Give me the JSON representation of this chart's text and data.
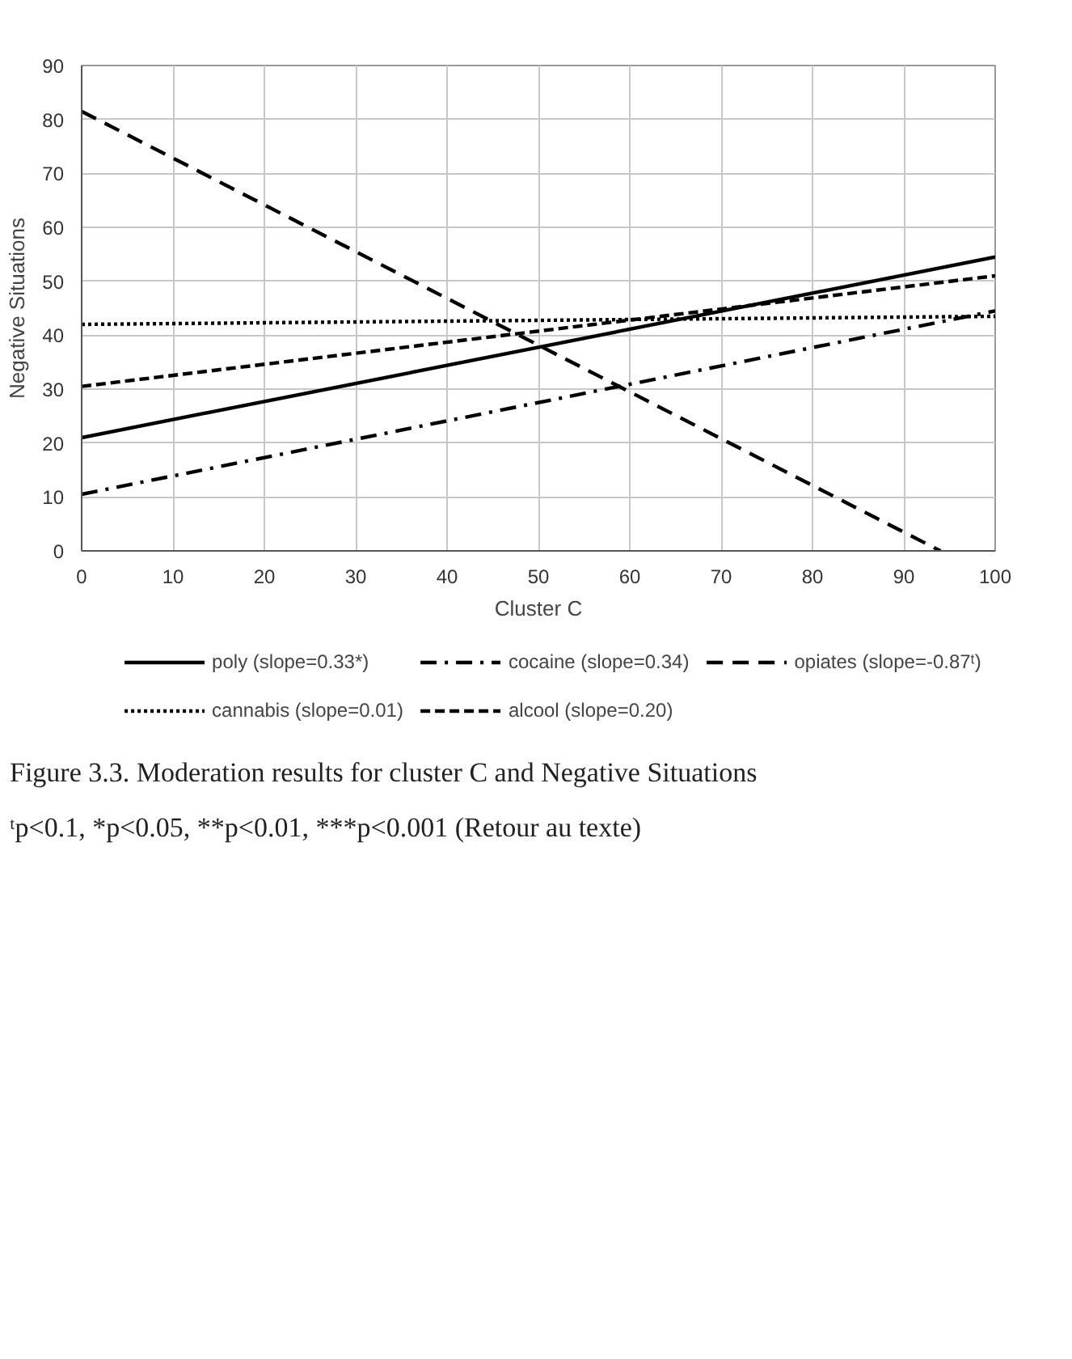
{
  "chart_data": {
    "type": "line",
    "xlabel": "Cluster C",
    "ylabel": "Negative Situations",
    "x": [
      0,
      100
    ],
    "series": [
      {
        "name": "poly (slope=0.33*)",
        "color": "#000000",
        "line_style": "solid",
        "values": [
          21,
          54.5
        ]
      },
      {
        "name": "cocaine (slope=0.34)",
        "color": "#000000",
        "line_style": "dashdot",
        "values": [
          10.5,
          44.5
        ]
      },
      {
        "name": "opiates (slope=-0.87ᵗ)",
        "color": "#000000",
        "line_style": "longdash",
        "x": [
          0,
          94
        ],
        "values": [
          81.5,
          0
        ]
      },
      {
        "name": "cannabis (slope=0.01)",
        "color": "#000000",
        "line_style": "dotted",
        "values": [
          42,
          43.5
        ]
      },
      {
        "name": "alcool (slope=0.20)",
        "color": "#000000",
        "line_style": "dashed",
        "values": [
          30.5,
          51
        ]
      }
    ],
    "xlim": [
      0,
      100
    ],
    "xticks": [
      0,
      10,
      20,
      30,
      40,
      50,
      60,
      70,
      80,
      90,
      100
    ],
    "ylim": [
      0,
      90
    ],
    "yticks": [
      0,
      10,
      20,
      30,
      40,
      50,
      60,
      70,
      80,
      90
    ],
    "grid": true,
    "legend": "bottom",
    "marker": "none",
    "annotations": [
      "Figure 3.3. Moderation results for cluster C and Negative Situations",
      "ᵗp<0.1, *p<0.05, **p<0.01, ***p<0.001 (Retour au texte)"
    ]
  }
}
